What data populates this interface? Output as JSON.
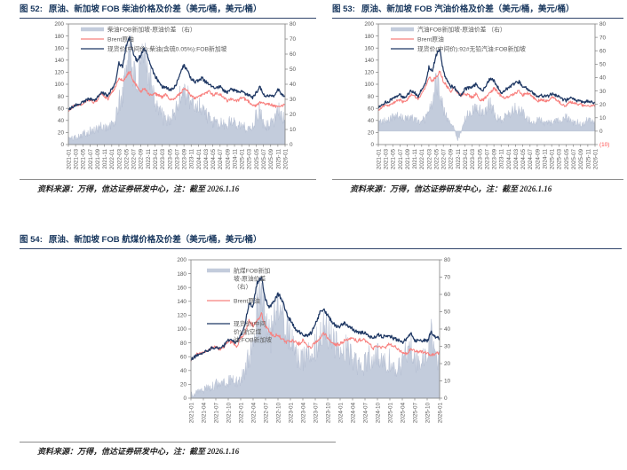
{
  "colors": {
    "title_navy": "#17365D",
    "spot_line": "#1F3864",
    "brent_line": "#F8807E",
    "spread_area": "#C3CCDC",
    "axis_text": "#595959",
    "negative_tick": "#FF4B4B"
  },
  "figures": [
    {
      "label": "图 52:",
      "title": "原油、新加坡 FOB 柴油价格及价差（美元/桶，美元/桶）",
      "source_prefix": "资料来源：万得，信达证券研发中心，注：截至 ",
      "source_date": "2026.1.16"
    },
    {
      "label": "图 53:",
      "title": "原油、新加坡 FOB 汽油价格及价差（美元/桶，美元/桶）",
      "source_prefix": "资料来源：万得，信达证券研发中心，注：截至 ",
      "source_date": "2026.1.16"
    },
    {
      "label": "图 54:",
      "title": "原油、新加坡 FOB 航煤价格及价差（美元/桶，美元/桶）",
      "source_prefix": "资料来源：万得，信达证券研发中心，注：截至 ",
      "source_date": "2026.1.16"
    }
  ],
  "chart_data": [
    {
      "type": "area",
      "subtype": "combo: spread area (right axis) + two price lines (left axis)",
      "title": "原油、新加坡FOB柴油价格及价差",
      "x_unit": "monthly 2021-01 to 2026-01",
      "x_tick_labels": [
        "2021-01",
        "2021-03",
        "2021-05",
        "2021-07",
        "2021-09",
        "2021-11",
        "2022-01",
        "2022-03",
        "2022-05",
        "2022-07",
        "2022-09",
        "2022-11",
        "2023-01",
        "2023-03",
        "2023-05",
        "2023-07",
        "2023-09",
        "2023-11",
        "2024-01",
        "2024-03",
        "2024-05",
        "2024-07",
        "2024-09",
        "2024-11",
        "2025-01",
        "2025-03",
        "2025-05",
        "2025-07",
        "2025-09",
        "2025-11",
        "2026-01"
      ],
      "left_axis": {
        "min": 0,
        "max": 200,
        "ticks": [
          0,
          20,
          40,
          60,
          80,
          100,
          120,
          140,
          160,
          180,
          200
        ]
      },
      "right_axis": {
        "min": 0,
        "max": 80,
        "tick_values": [
          80,
          70,
          60,
          50,
          40,
          30,
          20,
          10,
          0
        ],
        "tick_labels": [
          "80",
          "70",
          "60",
          "50",
          "40",
          "30",
          "20",
          "10",
          "0"
        ]
      },
      "series": [
        {
          "name": "柴油FOB新加坡-原油价差 （右）",
          "legend_lines": [
            "柴油FOB新加坡-原油价差 （右）"
          ],
          "type": "area",
          "axis": "right",
          "color": "#C3CCDC",
          "monthly_values": [
            4,
            4,
            5,
            6,
            7,
            8,
            9,
            9,
            10,
            12,
            12,
            11,
            13,
            16,
            28,
            32,
            52,
            64,
            48,
            40,
            50,
            58,
            52,
            44,
            30,
            24,
            19,
            15,
            17,
            19,
            24,
            32,
            38,
            33,
            27,
            26,
            25,
            26,
            21,
            17,
            15,
            13,
            14,
            13,
            13,
            16,
            16,
            14,
            12,
            11,
            11,
            12,
            19,
            23,
            14,
            13,
            14,
            15,
            27,
            19,
            15
          ]
        },
        {
          "name": "Brent原油",
          "legend_lines": [
            "Brent原油"
          ],
          "type": "line",
          "axis": "left",
          "color": "#F8807E",
          "monthly_values": [
            55,
            62,
            65,
            65,
            68,
            73,
            74,
            70,
            74,
            83,
            80,
            75,
            86,
            94,
            112,
            105,
            112,
            122,
            105,
            97,
            88,
            93,
            85,
            81,
            84,
            82,
            78,
            84,
            75,
            74,
            80,
            85,
            93,
            88,
            80,
            77,
            79,
            83,
            85,
            89,
            82,
            85,
            84,
            78,
            72,
            75,
            73,
            73,
            79,
            75,
            71,
            65,
            64,
            71,
            69,
            67,
            67,
            64,
            63,
            64,
            66
          ]
        },
        {
          "name": "现货价(中间价):柴油(含硫0.05%):FOB新加坡",
          "legend_lines": [
            "现货价(中间价):柴油(含硫0.05%):FOB新加坡"
          ],
          "type": "line",
          "axis": "left",
          "color": "#1F3864",
          "monthly_values": [
            58,
            62,
            66,
            67,
            70,
            74,
            76,
            73,
            78,
            86,
            84,
            80,
            92,
            102,
            135,
            128,
            162,
            178,
            152,
            138,
            148,
            158,
            146,
            128,
            114,
            104,
            96,
            96,
            90,
            92,
            102,
            118,
            132,
            122,
            108,
            104,
            106,
            110,
            104,
            100,
            96,
            94,
            96,
            90,
            86,
            92,
            90,
            88,
            88,
            84,
            82,
            78,
            86,
            96,
            82,
            80,
            82,
            80,
            92,
            84,
            81
          ]
        }
      ]
    },
    {
      "type": "area",
      "subtype": "combo: spread area (right axis) + two price lines (left axis)",
      "title": "原油、新加坡FOB汽油价格及价差",
      "x_unit": "monthly 2021-01 to 2026-01",
      "x_tick_labels": [
        "2021-01",
        "2021-03",
        "2021-05",
        "2021-07",
        "2021-09",
        "2021-11",
        "2022-01",
        "2022-03",
        "2022-05",
        "2022-07",
        "2022-09",
        "2022-11",
        "2023-01",
        "2023-03",
        "2023-05",
        "2023-07",
        "2023-09",
        "2023-11",
        "2024-01",
        "2024-03",
        "2024-05",
        "2024-07",
        "2024-09",
        "2024-11",
        "2025-01",
        "2025-03",
        "2025-05",
        "2025-07",
        "2025-09",
        "2025-11",
        "2026-01"
      ],
      "left_axis": {
        "min": 0,
        "max": 200,
        "ticks": [
          0,
          20,
          40,
          60,
          80,
          100,
          120,
          140,
          160,
          180,
          200
        ]
      },
      "right_axis": {
        "min": -10,
        "max": 80,
        "tick_values": [
          80,
          70,
          60,
          50,
          40,
          30,
          20,
          10,
          0,
          -10
        ],
        "tick_labels": [
          "80",
          "70",
          "60",
          "50",
          "40",
          "30",
          "20",
          "10",
          "0",
          "(10)"
        ]
      },
      "series": [
        {
          "name": "汽油FOB新加坡-原油价差 （右）",
          "legend_lines": [
            "汽油FOB新加坡-原油价差 （右）"
          ],
          "type": "area",
          "axis": "right",
          "color": "#C3CCDC",
          "monthly_values": [
            6,
            7,
            8,
            9,
            10,
            11,
            11,
            9,
            10,
            11,
            9,
            7,
            8,
            9,
            15,
            22,
            36,
            33,
            16,
            10,
            6,
            2,
            -6,
            0,
            9,
            13,
            16,
            18,
            16,
            14,
            18,
            21,
            15,
            10,
            8,
            11,
            13,
            15,
            17,
            16,
            13,
            10,
            8,
            6,
            8,
            8,
            6,
            7,
            6,
            7,
            8,
            9,
            10,
            8,
            6,
            7,
            5,
            6,
            10,
            8,
            5
          ]
        },
        {
          "name": "Brent原油",
          "legend_lines": [
            "Brent原油"
          ],
          "type": "line",
          "axis": "left",
          "color": "#F8807E",
          "monthly_values": [
            55,
            62,
            65,
            65,
            68,
            73,
            74,
            70,
            74,
            83,
            80,
            75,
            86,
            94,
            112,
            105,
            112,
            122,
            105,
            97,
            88,
            93,
            85,
            81,
            84,
            82,
            78,
            84,
            75,
            74,
            80,
            85,
            93,
            88,
            80,
            77,
            79,
            83,
            85,
            89,
            82,
            85,
            84,
            78,
            72,
            75,
            73,
            73,
            79,
            75,
            71,
            65,
            64,
            71,
            69,
            67,
            67,
            64,
            63,
            64,
            66
          ]
        },
        {
          "name": "现货价(中间价):92#无铅汽油:FOB新加坡",
          "legend_lines": [
            "现货价(中间价):92#无铅汽油:FOB新加坡"
          ],
          "type": "line",
          "axis": "left",
          "color": "#1F3864",
          "monthly_values": [
            62,
            66,
            70,
            72,
            76,
            80,
            82,
            78,
            82,
            90,
            86,
            80,
            92,
            100,
            128,
            122,
            148,
            158,
            122,
            106,
            96,
            96,
            86,
            82,
            92,
            94,
            96,
            100,
            92,
            90,
            100,
            110,
            106,
            96,
            86,
            90,
            94,
            98,
            102,
            104,
            96,
            94,
            90,
            84,
            80,
            82,
            80,
            80,
            84,
            82,
            80,
            75,
            73,
            78,
            75,
            73,
            71,
            69,
            73,
            71,
            69
          ]
        }
      ]
    },
    {
      "type": "area",
      "subtype": "combo: spread area (right axis) + two price lines (left axis)",
      "title": "原油、新加坡FOB航煤价格及价差",
      "x_unit": "monthly 2021-01 to 2026-01",
      "x_tick_labels": [
        "2021-01",
        "2021-04",
        "2021-07",
        "2021-10",
        "2022-01",
        "2022-04",
        "2022-07",
        "2022-10",
        "2023-01",
        "2023-04",
        "2023-07",
        "2023-10",
        "2024-01",
        "2024-04",
        "2024-07",
        "2024-10",
        "2025-01",
        "2025-04",
        "2025-07",
        "2025-10",
        "2026-01"
      ],
      "left_axis": {
        "min": 0,
        "max": 200,
        "ticks": [
          0,
          20,
          40,
          60,
          80,
          100,
          120,
          140,
          160,
          180,
          200
        ]
      },
      "right_axis": {
        "min": 0,
        "max": 80,
        "tick_values": [
          80,
          70,
          60,
          50,
          40,
          30,
          20,
          10,
          0
        ],
        "tick_labels": [
          "80",
          "70",
          "60",
          "50",
          "40",
          "30",
          "20",
          "10",
          "0"
        ]
      },
      "series": [
        {
          "name": "航煤FOB新加坡-原油价差（右）",
          "legend_lines": [
            "航煤FOB新加",
            "坡-原油价差",
            "（右）"
          ],
          "type": "area",
          "axis": "right",
          "color": "#C3CCDC",
          "monthly_values": [
            2,
            3,
            4,
            5,
            6,
            7,
            8,
            8,
            9,
            10,
            11,
            10,
            11,
            14,
            24,
            30,
            50,
            66,
            42,
            36,
            44,
            54,
            50,
            42,
            34,
            28,
            24,
            22,
            24,
            26,
            30,
            38,
            42,
            38,
            34,
            30,
            28,
            30,
            26,
            22,
            20,
            18,
            20,
            24,
            22,
            26,
            24,
            22,
            22,
            20,
            18,
            20,
            26,
            30,
            22,
            20,
            22,
            24,
            36,
            26,
            20
          ]
        },
        {
          "name": "Brent原油",
          "legend_lines": [
            "Brent原油"
          ],
          "type": "line",
          "axis": "left",
          "color": "#F8807E",
          "monthly_values": [
            55,
            62,
            65,
            65,
            68,
            73,
            74,
            70,
            74,
            83,
            80,
            75,
            86,
            94,
            112,
            105,
            112,
            122,
            105,
            97,
            88,
            93,
            85,
            81,
            84,
            82,
            78,
            84,
            75,
            74,
            80,
            85,
            93,
            88,
            80,
            77,
            79,
            83,
            85,
            89,
            82,
            85,
            84,
            78,
            72,
            75,
            73,
            73,
            79,
            75,
            71,
            65,
            64,
            71,
            69,
            67,
            67,
            64,
            63,
            64,
            66
          ]
        },
        {
          "name": "现货价(中间价):航空煤油:FOB新加坡",
          "legend_lines": [
            "现货价(中间",
            "价):航空煤",
            "油:FOB新加坡"
          ],
          "type": "line",
          "axis": "left",
          "color": "#1F3864",
          "monthly_values": [
            56,
            60,
            64,
            66,
            69,
            72,
            74,
            71,
            76,
            84,
            84,
            80,
            90,
            104,
            138,
            132,
            168,
            174,
            142,
            132,
            138,
            152,
            142,
            122,
            112,
            102,
            96,
            92,
            90,
            94,
            106,
            122,
            130,
            120,
            110,
            104,
            104,
            108,
            102,
            100,
            96,
            94,
            96,
            90,
            86,
            92,
            90,
            88,
            90,
            86,
            84,
            80,
            86,
            94,
            84,
            82,
            84,
            82,
            96,
            88,
            86
          ]
        }
      ]
    }
  ]
}
